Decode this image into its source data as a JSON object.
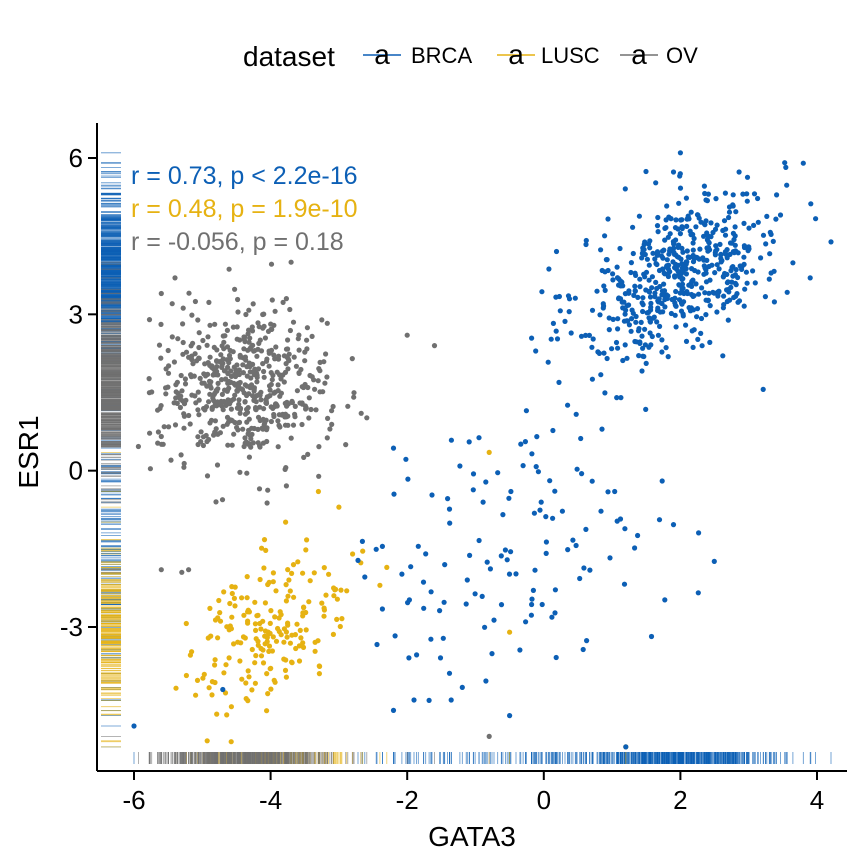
{
  "chart_data": {
    "type": "scatter",
    "title": "",
    "xlabel": "GATA3",
    "ylabel": "ESR1",
    "xlim": [
      -6.5,
      4.4
    ],
    "ylim": [
      -5.7,
      6.7
    ],
    "xticks": [
      -6,
      -4,
      -2,
      0,
      2,
      4
    ],
    "yticks": [
      -3,
      0,
      3,
      6
    ],
    "xtick_labels": [
      "-6",
      "-4",
      "-2",
      "0",
      "2",
      "4"
    ],
    "ytick_labels": [
      "-3",
      "0",
      "3",
      "6"
    ],
    "grid": false,
    "legend": {
      "title": "dataset",
      "placement": "top",
      "glyph": "a"
    },
    "series": [
      {
        "name": "BRCA",
        "color": "#0c5fb5",
        "stat": "r = 0.73, p < 2.2e-16",
        "clusters": [
          {
            "cx": 2.0,
            "cy": 3.8,
            "sx": 0.75,
            "sy": 0.85,
            "n": 560,
            "r": 0.5
          },
          {
            "cx": -0.4,
            "cy": -1.3,
            "sx": 1.25,
            "sy": 1.45,
            "n": 140,
            "r": 0.35
          }
        ],
        "points": [
          [
            -6.0,
            -4.9
          ],
          [
            -4.7,
            -4.2
          ],
          [
            -2.2,
            -4.6
          ],
          [
            1.2,
            -5.3
          ],
          [
            -0.5,
            -4.7
          ],
          [
            -1.9,
            -4.4
          ],
          [
            3.9,
            3.7
          ],
          [
            3.8,
            5.9
          ],
          [
            2.0,
            6.1
          ]
        ]
      },
      {
        "name": "LUSC",
        "color": "#e6b212",
        "stat": "r = 0.48, p = 1.9e-10",
        "clusters": [
          {
            "cx": -4.0,
            "cy": -3.0,
            "sx": 0.6,
            "sy": 0.75,
            "n": 200,
            "r": 0.45
          }
        ],
        "points": [
          [
            -3.3,
            -0.4
          ],
          [
            -3.0,
            -0.7
          ],
          [
            -2.8,
            -1.6
          ],
          [
            -2.4,
            -2.2
          ],
          [
            -0.5,
            -3.1
          ],
          [
            1.2,
            -5.3
          ],
          [
            -0.8,
            0.35
          ]
        ]
      },
      {
        "name": "OV",
        "color": "#707070",
        "stat": "r = -0.056, p = 0.18",
        "clusters": [
          {
            "cx": -4.4,
            "cy": 1.6,
            "sx": 0.62,
            "sy": 0.72,
            "n": 560,
            "r": -0.05
          }
        ],
        "points": [
          [
            -5.6,
            -1.9
          ],
          [
            -5.3,
            -1.95
          ],
          [
            -5.2,
            -1.9
          ],
          [
            -2.0,
            2.6
          ],
          [
            -1.6,
            2.4
          ],
          [
            -0.8,
            -5.1
          ],
          [
            -3.7,
            4.0
          ],
          [
            -5.6,
            3.4
          ],
          [
            -5.4,
            3.7
          ],
          [
            -2.9,
            0.5
          ],
          [
            -4.8,
            -0.6
          ]
        ]
      }
    ]
  }
}
